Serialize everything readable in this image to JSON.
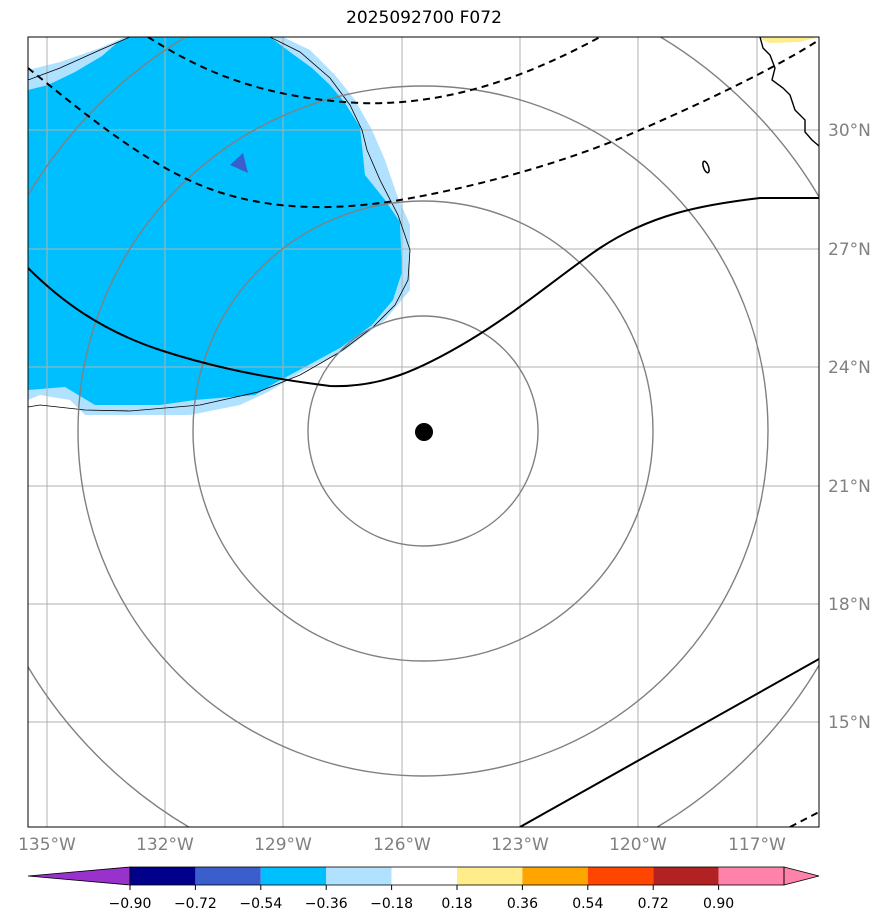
{
  "title": "2025092700 F072",
  "lon_ticks": [
    "135°W",
    "132°W",
    "129°W",
    "126°W",
    "123°W",
    "120°W",
    "117°W"
  ],
  "lat_ticks": [
    "30°N",
    "27°N",
    "24°N",
    "21°N",
    "18°N",
    "15°N"
  ],
  "colorbar": {
    "ticks": [
      "−0.90",
      "−0.72",
      "−0.54",
      "−0.36",
      "−0.18",
      "0.18",
      "0.36",
      "0.54",
      "0.72",
      "0.90"
    ],
    "colors": [
      "#9932cc",
      "#00008b",
      "#3a5fcd",
      "#00bfff",
      "#b0e2ff",
      "#ffffff",
      "#ffec8b",
      "#ffa500",
      "#ff4500",
      "#b22222",
      "#ff82ab"
    ]
  },
  "colors": {
    "anomaly_fill": "#00bfff",
    "anomaly_fill_light": "#b0e2ff",
    "positive_fill": "#ffec8b",
    "range_ring": "#808080",
    "contour": "#000000",
    "grid": "#b0b0b0"
  },
  "storm_center": {
    "lon": -125.5,
    "lat": 22.4
  }
}
